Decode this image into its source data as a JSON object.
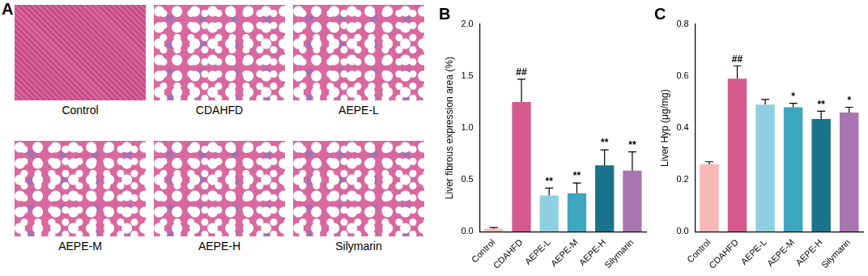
{
  "images": {
    "panel": "A",
    "labels": [
      "Control",
      "CDAHFD",
      "AEPE-L",
      "AEPE-M",
      "AEPE-H",
      "Silymarin"
    ]
  },
  "chart_data": [
    {
      "type": "bar",
      "panel": "B",
      "y_label": "Liver fibrous expression area (%)",
      "categories": [
        "Control",
        "CDAHFD",
        "AEPE-L",
        "AEPE-M",
        "AEPE-H",
        "Silymarin"
      ],
      "values": [
        0.03,
        1.25,
        0.35,
        0.37,
        0.64,
        0.59
      ],
      "errors": [
        0.01,
        0.22,
        0.07,
        0.1,
        0.15,
        0.18
      ],
      "significance": [
        null,
        "##",
        "**",
        "**",
        "**",
        "**"
      ],
      "colors": [
        "#f7b9b6",
        "#d45a8c",
        "#8fd0e0",
        "#3ea6bf",
        "#1b7389",
        "#a975b1"
      ],
      "ylim": [
        0,
        2.0
      ],
      "yticks": [
        {
          "value": 0,
          "label": "0.0"
        },
        0.5,
        {
          "value": 1,
          "label": "1.0"
        },
        1.5,
        {
          "value": 2,
          "label": "2.0"
        }
      ],
      "grid": false
    },
    {
      "type": "bar",
      "panel": "C",
      "y_label": "Liver Hyp (μg/mg)",
      "categories": [
        "Control",
        "CDAHFD",
        "AEPE-L",
        "AEPE-M",
        "AEPE-H",
        "Silymarin"
      ],
      "values": [
        0.26,
        0.59,
        0.49,
        0.48,
        0.435,
        0.46
      ],
      "errors": [
        0.01,
        0.05,
        0.02,
        0.015,
        0.03,
        0.02
      ],
      "significance": [
        null,
        "##",
        null,
        "*",
        "**",
        "*"
      ],
      "colors": [
        "#f7b9b6",
        "#d45a8c",
        "#8fd0e0",
        "#3ea6bf",
        "#1b7389",
        "#a975b1"
      ],
      "ylim": [
        0,
        0.8
      ],
      "yticks": [
        {
          "value": 0,
          "label": "0.0"
        },
        0.2,
        0.4,
        0.6,
        0.8
      ],
      "grid": false
    }
  ]
}
